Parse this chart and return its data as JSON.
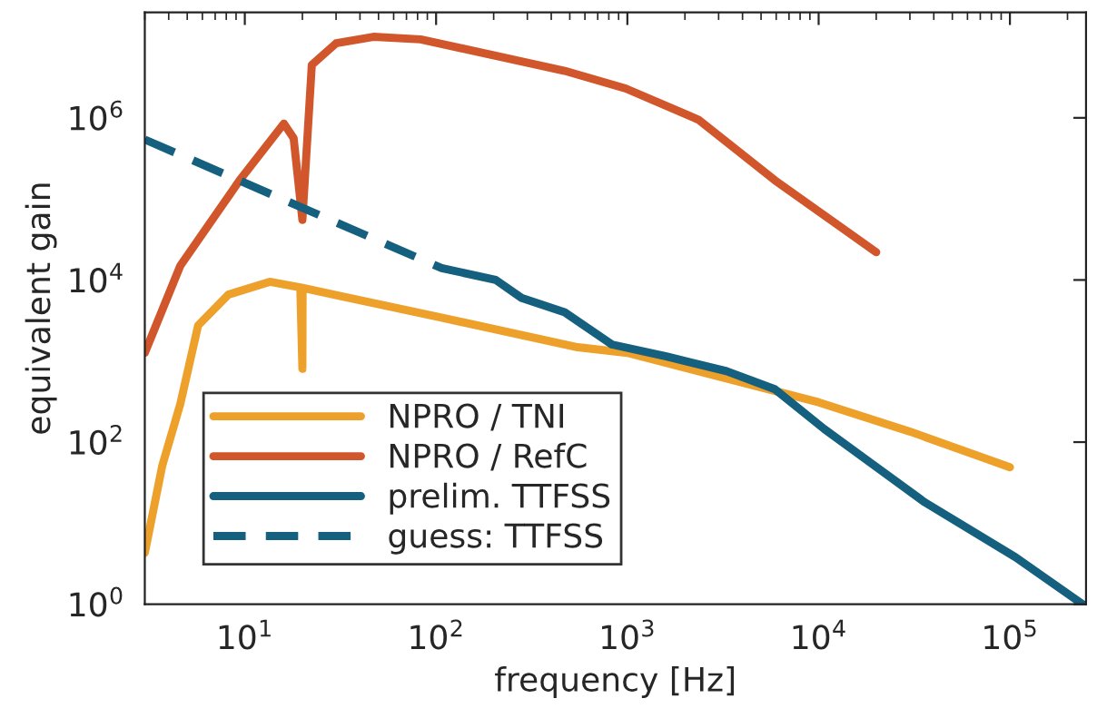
{
  "chart_data": {
    "type": "line",
    "xlabel": "frequency [Hz]",
    "ylabel": "equivalent gain",
    "log": "xy",
    "xlim": [
      3,
      250000
    ],
    "ylim": [
      1,
      20000000
    ],
    "xticks": [
      {
        "value": 10,
        "label": "10$^{1}$"
      },
      {
        "value": 100,
        "label": "10$^{2}$"
      },
      {
        "value": 1000,
        "label": "10$^{3}$"
      },
      {
        "value": 10000,
        "label": "10$^{4}$"
      },
      {
        "value": 100000,
        "label": "10$^{5}$"
      }
    ],
    "yticks": [
      {
        "value": 1,
        "label": "10$^{0}$"
      },
      {
        "value": 100,
        "label": "10$^{2}$"
      },
      {
        "value": 10000,
        "label": "10$^{4}$"
      },
      {
        "value": 1000000,
        "label": "10$^{6}$"
      }
    ],
    "grid": false,
    "legend": "bottom left",
    "series": [
      {
        "name": "NPRO / TNI",
        "color": "#eda02a",
        "line_style": "solid",
        "x": [
          3,
          3.7,
          4.6,
          5.7,
          8.2,
          13.5,
          19.5,
          20,
          20.05,
          30,
          100,
          550,
          1000,
          10000,
          30000,
          100000
        ],
        "values": [
          4.3,
          51,
          295,
          2750,
          6600,
          9500,
          8100,
          800,
          8000,
          6500,
          3550,
          1480,
          1260,
          310,
          135,
          49
        ]
      },
      {
        "name": "NPRO / RefC",
        "color": "#d2562b",
        "line_style": "solid",
        "x": [
          3,
          4.6,
          9.4,
          16,
          18,
          20,
          22.4,
          30,
          47,
          83,
          470,
          980,
          2350,
          5900,
          20000
        ],
        "values": [
          1260,
          15000,
          170000,
          850000,
          560000,
          55000,
          4500000,
          8300000,
          10000000,
          9300000,
          3800000,
          2300000,
          950000,
          170000,
          22000
        ]
      },
      {
        "name": "prelim. TTFSS",
        "color": "#15607f",
        "line_style": "solid",
        "x": [
          107,
          205,
          280,
          470,
          830,
          1600,
          3300,
          5900,
          10700,
          36000,
          107000,
          240000
        ],
        "values": [
          14000,
          10000,
          6000,
          4000,
          1600,
          1140,
          750,
          450,
          145,
          18,
          3.8,
          1
        ]
      },
      {
        "name": "guess: TTFSS",
        "color": "#15607f",
        "line_style": "dashed",
        "x": [
          3,
          107
        ],
        "values": [
          540000,
          14000
        ]
      }
    ]
  }
}
